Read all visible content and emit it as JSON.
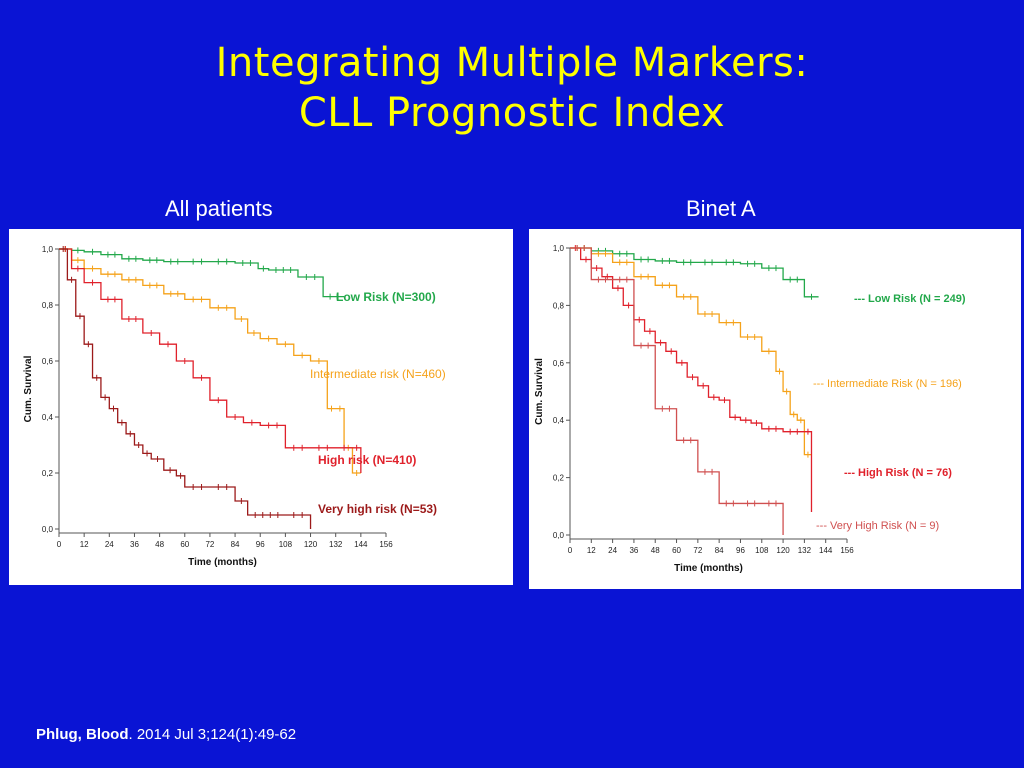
{
  "slide": {
    "title_line1": "Integrating Multiple Markers:",
    "title_line2": "CLL Prognostic Index"
  },
  "panels": {
    "left_title": "All patients",
    "right_title": "Binet A"
  },
  "citation": {
    "authors_journal": "Phlug, Blood",
    "details": ". 2014 Jul 3;124(1):49-62"
  },
  "colors": {
    "background": "#0a14d4",
    "title": "#ffff00",
    "low": "#22a84a",
    "intermediate": "#f5a21a",
    "high": "#e0212b",
    "very_high": "#9c1a1a"
  },
  "chart_data": [
    {
      "type": "line",
      "step": true,
      "ylabel": "Cum. Survival",
      "xlabel": "Time (months)",
      "xlim": [
        0,
        156
      ],
      "ylim": [
        0,
        1
      ],
      "xticks": [
        "0",
        "12",
        "24",
        "36",
        "48",
        "60",
        "72",
        "84",
        "96",
        "108",
        "120",
        "132",
        "144",
        "156"
      ],
      "yticks": [
        "0,0",
        "0,2",
        "0,4",
        "0,6",
        "0,8",
        "1,0"
      ],
      "series": [
        {
          "name": "Low Risk (N=300)",
          "color": "#22a84a",
          "x": [
            0,
            6,
            12,
            20,
            30,
            40,
            50,
            60,
            72,
            84,
            95,
            100,
            114,
            126,
            136
          ],
          "y": [
            1.0,
            0.995,
            0.99,
            0.98,
            0.965,
            0.96,
            0.955,
            0.955,
            0.955,
            0.95,
            0.93,
            0.925,
            0.9,
            0.83,
            0.83
          ]
        },
        {
          "name": "Intermediate risk (N=460)",
          "color": "#f5a21a",
          "x": [
            0,
            6,
            12,
            20,
            30,
            40,
            50,
            60,
            72,
            84,
            90,
            96,
            104,
            112,
            120,
            128,
            132,
            136,
            140,
            144
          ],
          "y": [
            1.0,
            0.96,
            0.93,
            0.91,
            0.89,
            0.87,
            0.84,
            0.82,
            0.79,
            0.75,
            0.7,
            0.68,
            0.66,
            0.62,
            0.6,
            0.43,
            0.43,
            0.29,
            0.2,
            0.2
          ]
        },
        {
          "name": "High risk (N=410)",
          "color": "#e0212b",
          "x": [
            0,
            6,
            12,
            20,
            30,
            40,
            48,
            56,
            64,
            72,
            80,
            88,
            96,
            108,
            120,
            132,
            140,
            144
          ],
          "y": [
            1.0,
            0.93,
            0.88,
            0.82,
            0.75,
            0.7,
            0.66,
            0.6,
            0.54,
            0.46,
            0.4,
            0.38,
            0.37,
            0.29,
            0.29,
            0.29,
            0.29,
            0.2
          ]
        },
        {
          "name": "Very high risk (N=53)",
          "color": "#9c1a1a",
          "x": [
            0,
            4,
            8,
            12,
            16,
            20,
            24,
            28,
            32,
            36,
            40,
            44,
            50,
            56,
            60,
            72,
            84,
            90,
            108,
            120
          ],
          "y": [
            1.0,
            0.89,
            0.76,
            0.66,
            0.54,
            0.47,
            0.43,
            0.38,
            0.34,
            0.3,
            0.27,
            0.25,
            0.21,
            0.19,
            0.15,
            0.15,
            0.1,
            0.05,
            0.05,
            0.0
          ]
        }
      ]
    },
    {
      "type": "line",
      "step": true,
      "ylabel": "Cum. Survival",
      "xlabel": "Time (months)",
      "xlim": [
        0,
        156
      ],
      "ylim": [
        0,
        1
      ],
      "xticks": [
        "0",
        "12",
        "24",
        "36",
        "48",
        "60",
        "72",
        "84",
        "96",
        "108",
        "120",
        "132",
        "144",
        "156"
      ],
      "yticks": [
        "0,0",
        "0,2",
        "0,4",
        "0,6",
        "0,8",
        "1,0"
      ],
      "series": [
        {
          "name": "--- Low Risk (N = 249)",
          "color": "#22a84a",
          "x": [
            0,
            12,
            24,
            36,
            48,
            60,
            72,
            84,
            96,
            108,
            120,
            132,
            140
          ],
          "y": [
            1.0,
            0.99,
            0.98,
            0.96,
            0.955,
            0.95,
            0.95,
            0.95,
            0.945,
            0.93,
            0.89,
            0.83,
            0.83
          ]
        },
        {
          "name": "--- Intermediate Risk (N = 196)",
          "color": "#f5a21a",
          "x": [
            0,
            12,
            24,
            36,
            48,
            60,
            72,
            84,
            96,
            108,
            116,
            120,
            124,
            128,
            132,
            136
          ],
          "y": [
            1.0,
            0.98,
            0.95,
            0.9,
            0.87,
            0.83,
            0.77,
            0.74,
            0.69,
            0.64,
            0.57,
            0.5,
            0.42,
            0.4,
            0.28,
            0.28
          ]
        },
        {
          "name": "--- High Risk (N = 76)",
          "color": "#e0212b",
          "x": [
            0,
            6,
            12,
            18,
            24,
            30,
            36,
            42,
            48,
            54,
            60,
            66,
            72,
            78,
            84,
            90,
            96,
            102,
            108,
            120,
            132,
            136
          ],
          "y": [
            1.0,
            0.96,
            0.93,
            0.9,
            0.86,
            0.8,
            0.75,
            0.71,
            0.67,
            0.64,
            0.6,
            0.55,
            0.52,
            0.48,
            0.47,
            0.41,
            0.4,
            0.39,
            0.37,
            0.36,
            0.36,
            0.08
          ]
        },
        {
          "name": "--- Very High Risk (N = 9)",
          "color": "#d05050",
          "x": [
            0,
            12,
            24,
            36,
            48,
            60,
            72,
            84,
            96,
            108,
            120
          ],
          "y": [
            1.0,
            0.89,
            0.89,
            0.66,
            0.44,
            0.33,
            0.22,
            0.11,
            0.11,
            0.11,
            0.0
          ]
        }
      ]
    }
  ]
}
